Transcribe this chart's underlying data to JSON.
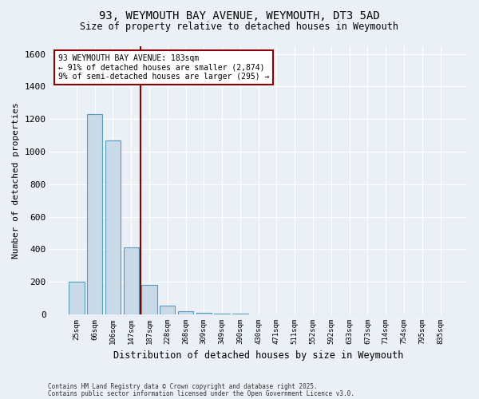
{
  "title_line1": "93, WEYMOUTH BAY AVENUE, WEYMOUTH, DT3 5AD",
  "title_line2": "Size of property relative to detached houses in Weymouth",
  "xlabel": "Distribution of detached houses by size in Weymouth",
  "ylabel": "Number of detached properties",
  "categories": [
    "25sqm",
    "66sqm",
    "106sqm",
    "147sqm",
    "187sqm",
    "228sqm",
    "268sqm",
    "309sqm",
    "349sqm",
    "390sqm",
    "430sqm",
    "471sqm",
    "511sqm",
    "552sqm",
    "592sqm",
    "633sqm",
    "673sqm",
    "714sqm",
    "754sqm",
    "795sqm",
    "835sqm"
  ],
  "values": [
    200,
    1230,
    1070,
    410,
    180,
    55,
    20,
    10,
    5,
    3,
    2,
    0,
    0,
    0,
    0,
    0,
    0,
    0,
    0,
    0,
    0
  ],
  "bar_color": "#c8d9e8",
  "bar_edge_color": "#5a9aba",
  "vline_index": 4,
  "vline_color": "#8b0000",
  "annotation_text": "93 WEYMOUTH BAY AVENUE: 183sqm\n← 91% of detached houses are smaller (2,874)\n9% of semi-detached houses are larger (295) →",
  "annotation_box_facecolor": "#ffffff",
  "annotation_box_edgecolor": "#8b0000",
  "ylim": [
    0,
    1650
  ],
  "yticks": [
    0,
    200,
    400,
    600,
    800,
    1000,
    1200,
    1400,
    1600
  ],
  "footer_line1": "Contains HM Land Registry data © Crown copyright and database right 2025.",
  "footer_line2": "Contains public sector information licensed under the Open Government Licence v3.0.",
  "bg_color": "#eaf0f6",
  "grid_color": "#d0dce8"
}
